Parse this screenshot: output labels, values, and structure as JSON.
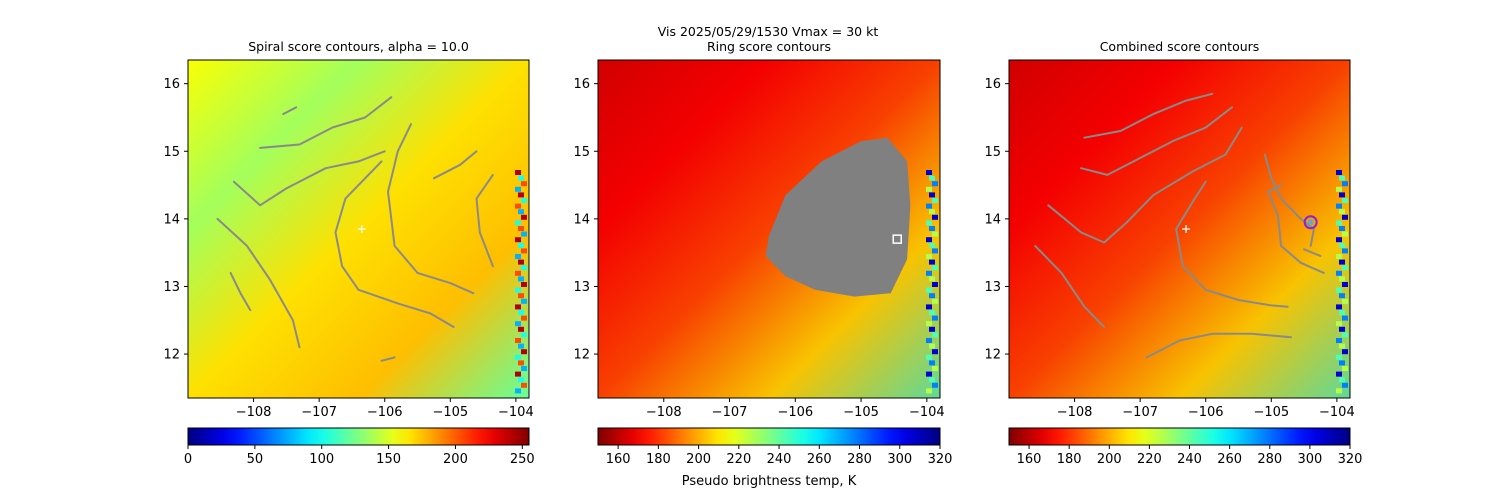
{
  "suptitle_line1": "Vis  2025/05/29/1530    Vmax = 30 kt",
  "chart_data": [
    {
      "type": "heatmap",
      "title": "Spiral score contours, alpha = 10.0",
      "colormap": "jet",
      "xlim": [
        -109.0,
        -103.8
      ],
      "ylim": [
        11.35,
        16.35
      ],
      "xticks": [
        "−108",
        "−107",
        "−106",
        "−105",
        "−104"
      ],
      "xtick_values": [
        -108,
        -107,
        -106,
        -105,
        -104
      ],
      "yticks": [
        "12",
        "13",
        "14",
        "15",
        "16"
      ],
      "ytick_values": [
        12,
        13,
        14,
        15,
        16
      ],
      "colorbar": {
        "min": 0,
        "max": 255,
        "ticks": [
          "0",
          "50",
          "100",
          "150",
          "200",
          "250"
        ],
        "tick_values": [
          0,
          50,
          100,
          150,
          200,
          250
        ],
        "reversed": false,
        "label": ""
      },
      "background_value_fraction": 0.62,
      "center_marker": {
        "x": -106.35,
        "y": 13.85,
        "symbol": "+",
        "color": "#ffffff"
      },
      "contours": [
        [
          [
            -107.55,
            15.55
          ],
          [
            -107.35,
            15.65
          ]
        ],
        [
          [
            -107.9,
            15.05
          ],
          [
            -107.3,
            15.1
          ],
          [
            -106.8,
            15.35
          ],
          [
            -106.3,
            15.5
          ],
          [
            -105.9,
            15.8
          ]
        ],
        [
          [
            -108.3,
            14.55
          ],
          [
            -107.9,
            14.2
          ],
          [
            -107.5,
            14.45
          ],
          [
            -106.9,
            14.75
          ],
          [
            -106.4,
            14.85
          ],
          [
            -106.0,
            15.0
          ]
        ],
        [
          [
            -106.05,
            14.85
          ],
          [
            -106.6,
            14.3
          ],
          [
            -106.75,
            13.8
          ],
          [
            -106.65,
            13.3
          ],
          [
            -106.4,
            12.95
          ],
          [
            -105.8,
            12.75
          ],
          [
            -105.3,
            12.6
          ],
          [
            -104.95,
            12.4
          ]
        ],
        [
          [
            -108.55,
            14.0
          ],
          [
            -108.1,
            13.6
          ],
          [
            -107.75,
            13.1
          ],
          [
            -107.4,
            12.5
          ],
          [
            -107.3,
            12.1
          ]
        ],
        [
          [
            -108.35,
            13.2
          ],
          [
            -108.2,
            12.9
          ],
          [
            -108.05,
            12.65
          ]
        ],
        [
          [
            -105.6,
            15.4
          ],
          [
            -105.8,
            15.0
          ],
          [
            -105.95,
            14.4
          ],
          [
            -105.85,
            13.6
          ],
          [
            -105.5,
            13.2
          ],
          [
            -105.0,
            13.05
          ],
          [
            -104.65,
            12.9
          ]
        ],
        [
          [
            -104.35,
            14.65
          ],
          [
            -104.6,
            14.3
          ],
          [
            -104.55,
            13.8
          ],
          [
            -104.35,
            13.3
          ]
        ],
        [
          [
            -105.25,
            14.6
          ],
          [
            -104.85,
            14.8
          ],
          [
            -104.6,
            15.0
          ]
        ],
        [
          [
            -106.05,
            11.9
          ],
          [
            -105.85,
            11.95
          ]
        ]
      ]
    },
    {
      "type": "heatmap",
      "title": "Ring score contours",
      "colormap": "jet_r",
      "xlim": [
        -109.0,
        -103.8
      ],
      "ylim": [
        11.35,
        16.35
      ],
      "xticks": [
        "−108",
        "−107",
        "−106",
        "−105",
        "−104"
      ],
      "xtick_values": [
        -108,
        -107,
        -106,
        -105,
        -104
      ],
      "yticks": [
        "12",
        "13",
        "14",
        "15",
        "16"
      ],
      "ytick_values": [
        12,
        13,
        14,
        15,
        16
      ],
      "colorbar": {
        "min": 150,
        "max": 320,
        "ticks": [
          "160",
          "180",
          "200",
          "220",
          "240",
          "260",
          "280",
          "300",
          "320"
        ],
        "tick_values": [
          160,
          180,
          200,
          220,
          240,
          260,
          280,
          300,
          320
        ],
        "reversed": true,
        "label": "Pseudo brightness temp, K"
      },
      "background_value_fraction": 0.08,
      "ring_region_color": "#808080",
      "ring_region_outline": [
        [
          -106.4,
          13.75
        ],
        [
          -106.15,
          14.35
        ],
        [
          -105.6,
          14.85
        ],
        [
          -105.0,
          15.15
        ],
        [
          -104.6,
          15.2
        ],
        [
          -104.3,
          14.85
        ],
        [
          -104.25,
          14.2
        ],
        [
          -104.3,
          13.4
        ],
        [
          -104.55,
          12.9
        ],
        [
          -105.1,
          12.85
        ],
        [
          -105.7,
          12.95
        ],
        [
          -106.15,
          13.15
        ],
        [
          -106.45,
          13.45
        ]
      ],
      "best_point_marker": {
        "x": -104.45,
        "y": 13.7,
        "symbol": "square",
        "color": "#ffffff"
      }
    },
    {
      "type": "heatmap",
      "title": "Combined score contours",
      "colormap": "jet_r",
      "xlim": [
        -109.0,
        -103.8
      ],
      "ylim": [
        11.35,
        16.35
      ],
      "xticks": [
        "−108",
        "−107",
        "−106",
        "−105",
        "−104"
      ],
      "xtick_values": [
        -108,
        -107,
        -106,
        -105,
        -104
      ],
      "yticks": [
        "12",
        "13",
        "14",
        "15",
        "16"
      ],
      "ytick_values": [
        12,
        13,
        14,
        15,
        16
      ],
      "colorbar": {
        "min": 150,
        "max": 320,
        "ticks": [
          "160",
          "180",
          "200",
          "220",
          "240",
          "260",
          "280",
          "300",
          "320"
        ],
        "tick_values": [
          160,
          180,
          200,
          220,
          240,
          260,
          280,
          300,
          320
        ],
        "reversed": true,
        "label": ""
      },
      "background_value_fraction": 0.08,
      "center_marker": {
        "x": -106.3,
        "y": 13.85,
        "symbol": "+",
        "color": "#ffffff"
      },
      "best_point_marker": {
        "x": -104.4,
        "y": 13.95,
        "symbol": "circle",
        "color": "#8b22d6"
      },
      "contours": [
        [
          [
            -107.85,
            15.2
          ],
          [
            -107.3,
            15.3
          ],
          [
            -106.8,
            15.55
          ],
          [
            -106.3,
            15.75
          ],
          [
            -105.9,
            15.85
          ]
        ],
        [
          [
            -107.9,
            14.75
          ],
          [
            -107.5,
            14.65
          ],
          [
            -107.0,
            14.9
          ],
          [
            -106.5,
            15.15
          ],
          [
            -106.0,
            15.35
          ],
          [
            -105.6,
            15.65
          ]
        ],
        [
          [
            -108.4,
            14.2
          ],
          [
            -107.9,
            13.8
          ],
          [
            -107.55,
            13.65
          ],
          [
            -107.2,
            13.95
          ],
          [
            -106.8,
            14.35
          ],
          [
            -106.2,
            14.7
          ],
          [
            -105.7,
            14.95
          ],
          [
            -105.45,
            15.35
          ]
        ],
        [
          [
            -106.0,
            14.55
          ],
          [
            -106.2,
            14.25
          ],
          [
            -106.45,
            13.85
          ],
          [
            -106.35,
            13.3
          ],
          [
            -106.0,
            12.95
          ],
          [
            -105.5,
            12.8
          ],
          [
            -105.0,
            12.72
          ],
          [
            -104.75,
            12.7
          ]
        ],
        [
          [
            -108.6,
            13.6
          ],
          [
            -108.2,
            13.2
          ],
          [
            -107.85,
            12.7
          ],
          [
            -107.55,
            12.4
          ]
        ],
        [
          [
            -105.1,
            14.95
          ],
          [
            -105.0,
            14.6
          ],
          [
            -104.85,
            14.3
          ],
          [
            -104.55,
            14.0
          ],
          [
            -104.35,
            13.85
          ],
          [
            -104.4,
            13.6
          ]
        ],
        [
          [
            -104.85,
            14.5
          ],
          [
            -105.05,
            14.4
          ],
          [
            -104.9,
            14.05
          ],
          [
            -104.85,
            13.6
          ],
          [
            -104.55,
            13.35
          ],
          [
            -104.2,
            13.2
          ]
        ],
        [
          [
            -104.5,
            13.55
          ],
          [
            -104.25,
            13.45
          ]
        ],
        [
          [
            -106.9,
            11.95
          ],
          [
            -106.4,
            12.2
          ],
          [
            -105.9,
            12.3
          ],
          [
            -105.3,
            12.3
          ],
          [
            -104.7,
            12.25
          ]
        ]
      ]
    }
  ]
}
